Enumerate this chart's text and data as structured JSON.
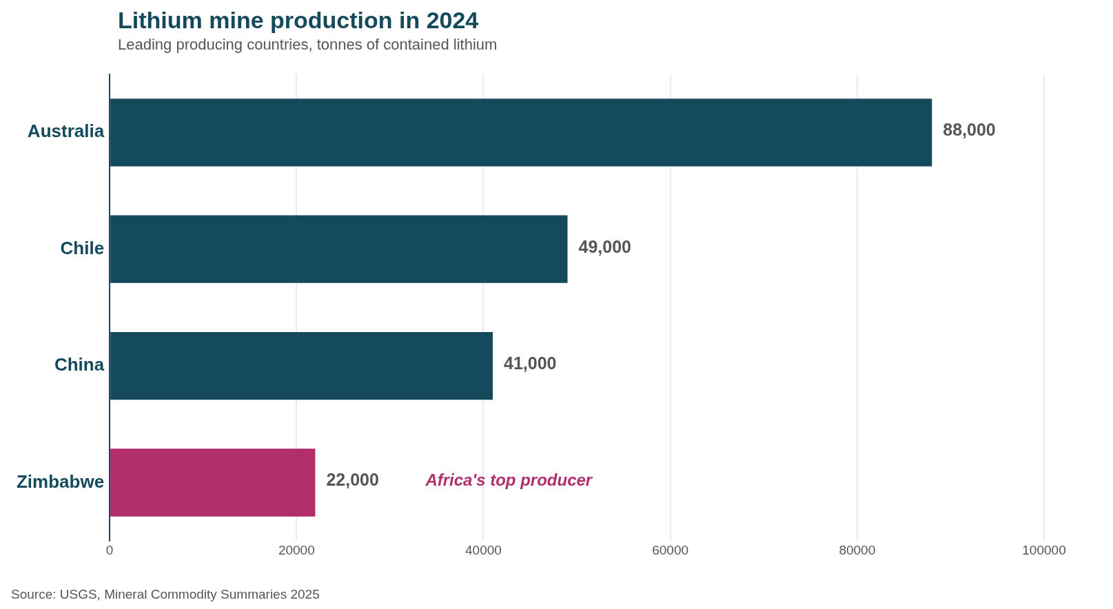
{
  "chart_data": {
    "type": "bar",
    "orientation": "horizontal",
    "title": "Lithium mine production in 2024",
    "subtitle": "Leading producing countries, tonnes of contained lithium",
    "categories": [
      "Australia",
      "Chile",
      "China",
      "Zimbabwe"
    ],
    "values": [
      88000,
      49000,
      41000,
      22000
    ],
    "colors": [
      "#154a5c",
      "#154a5c",
      "#154a5c",
      "#b22e6b"
    ],
    "value_labels": [
      "88,000",
      "49,000",
      "41,000",
      "22,000"
    ],
    "xlim": [
      0,
      100000
    ],
    "xticks": [
      0,
      20000,
      40000,
      60000,
      80000,
      100000
    ],
    "grid": "x",
    "annotations": [
      "Africa's top producer",
      "Source: USGS, Mineral Commodity Summaries 2025"
    ]
  }
}
